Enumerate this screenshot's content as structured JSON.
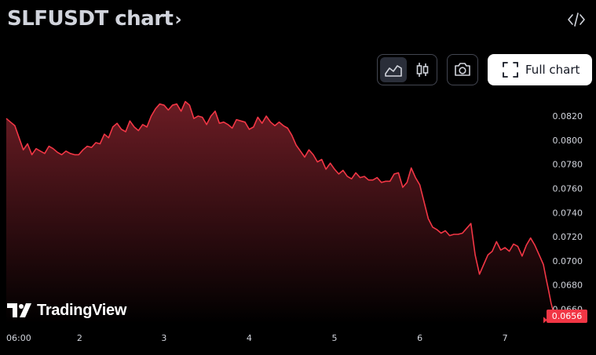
{
  "header": {
    "title": "SLFUSDT chart",
    "title_chevron": "›",
    "embed_icon": "code-icon"
  },
  "toolbar": {
    "line_icon": "area-chart-icon",
    "candle_icon": "candlestick-icon",
    "camera_icon": "camera-icon",
    "full_chart_label": "Full chart",
    "full_chart_icon": "fullscreen-icon"
  },
  "brand": {
    "logo_icon": "tradingview-logo-icon",
    "name": "TradingView"
  },
  "colors": {
    "line": "#f23645",
    "fill_top": "#6b1c24",
    "fill_bottom": "#000000",
    "badge": "#f23645"
  },
  "chart_data": {
    "type": "area",
    "title": "",
    "xlabel": "",
    "ylabel": "",
    "ylim": [
      0.0648,
      0.0835
    ],
    "yticks": [
      "0.0820",
      "0.0800",
      "0.0780",
      "0.0760",
      "0.0740",
      "0.0720",
      "0.0700",
      "0.0680",
      "0.0660"
    ],
    "ytick_values": [
      0.082,
      0.08,
      0.078,
      0.076,
      0.074,
      0.072,
      0.07,
      0.068,
      0.066
    ],
    "xticks": [
      "06:00",
      "2",
      "3",
      "4",
      "5",
      "6",
      "7"
    ],
    "xtick_values": [
      0.0,
      0.86,
      1.85,
      2.85,
      3.85,
      4.85,
      5.85
    ],
    "xlim": [
      0.0,
      6.3
    ],
    "last_value": "0.0656",
    "series": [
      {
        "x": [
          0.0,
          0.05,
          0.1,
          0.15,
          0.2,
          0.25,
          0.3,
          0.35,
          0.4,
          0.45,
          0.5,
          0.55,
          0.6,
          0.65,
          0.7,
          0.75,
          0.8,
          0.85,
          0.9,
          0.95,
          1.0,
          1.05,
          1.1,
          1.15,
          1.2,
          1.25,
          1.3,
          1.35,
          1.4,
          1.45,
          1.5,
          1.55,
          1.6,
          1.65,
          1.7,
          1.75,
          1.8,
          1.85,
          1.9,
          1.95,
          2.0,
          2.05,
          2.1,
          2.15,
          2.2,
          2.25,
          2.3,
          2.35,
          2.4,
          2.45,
          2.5,
          2.55,
          2.6,
          2.65,
          2.7,
          2.75,
          2.8,
          2.85,
          2.9,
          2.95,
          3.0,
          3.05,
          3.1,
          3.15,
          3.2,
          3.25,
          3.3,
          3.35,
          3.4,
          3.45,
          3.5,
          3.55,
          3.6,
          3.65,
          3.7,
          3.75,
          3.8,
          3.85,
          3.9,
          3.95,
          4.0,
          4.05,
          4.1,
          4.15,
          4.2,
          4.25,
          4.3,
          4.35,
          4.4,
          4.45,
          4.5,
          4.55,
          4.6,
          4.65,
          4.7,
          4.75,
          4.8,
          4.85,
          4.9,
          4.95,
          5.0,
          5.05,
          5.1,
          5.15,
          5.2,
          5.25,
          5.3,
          5.35,
          5.4,
          5.45,
          5.5,
          5.55,
          5.6,
          5.65,
          5.7,
          5.75,
          5.8,
          5.85,
          5.9,
          5.95,
          6.0,
          6.05,
          6.1,
          6.15,
          6.2,
          6.25
        ],
        "y": [
          0.0818,
          0.0815,
          0.0812,
          0.0802,
          0.0792,
          0.0797,
          0.0788,
          0.0793,
          0.0791,
          0.0789,
          0.0795,
          0.0793,
          0.079,
          0.0788,
          0.0791,
          0.0789,
          0.0788,
          0.0788,
          0.0792,
          0.0795,
          0.0794,
          0.0798,
          0.0797,
          0.0805,
          0.0802,
          0.0811,
          0.0814,
          0.0809,
          0.0807,
          0.0816,
          0.0811,
          0.0808,
          0.0813,
          0.0811,
          0.082,
          0.0826,
          0.083,
          0.0829,
          0.0825,
          0.0829,
          0.083,
          0.0824,
          0.0832,
          0.0829,
          0.0818,
          0.082,
          0.0819,
          0.0813,
          0.082,
          0.0824,
          0.0814,
          0.0815,
          0.0813,
          0.081,
          0.0817,
          0.0816,
          0.0815,
          0.0809,
          0.0811,
          0.0819,
          0.0814,
          0.082,
          0.0815,
          0.0812,
          0.0815,
          0.0812,
          0.081,
          0.0804,
          0.0796,
          0.0791,
          0.0786,
          0.0792,
          0.0788,
          0.0782,
          0.0784,
          0.0776,
          0.0781,
          0.0776,
          0.0772,
          0.0775,
          0.077,
          0.0768,
          0.0773,
          0.0769,
          0.077,
          0.0767,
          0.0767,
          0.0769,
          0.0765,
          0.0766,
          0.0766,
          0.0772,
          0.0773,
          0.0761,
          0.0765,
          0.0777,
          0.0769,
          0.0763,
          0.0749,
          0.0735,
          0.0728,
          0.0726,
          0.0723,
          0.0725,
          0.0721,
          0.0722,
          0.0722,
          0.0723,
          0.0727,
          0.0731,
          0.0705,
          0.0689,
          0.0697,
          0.0705,
          0.0708,
          0.0716,
          0.0709,
          0.0711,
          0.0708,
          0.0714,
          0.0712,
          0.0704,
          0.0713,
          0.0719,
          0.0713,
          0.0705
        ]
      }
    ],
    "tail": {
      "x": [
        6.25,
        6.3,
        6.33,
        6.36,
        6.39,
        6.42,
        6.45
      ],
      "y": [
        0.0705,
        0.0697,
        0.0686,
        0.0676,
        0.0665,
        0.0657,
        0.0651
      ]
    }
  }
}
